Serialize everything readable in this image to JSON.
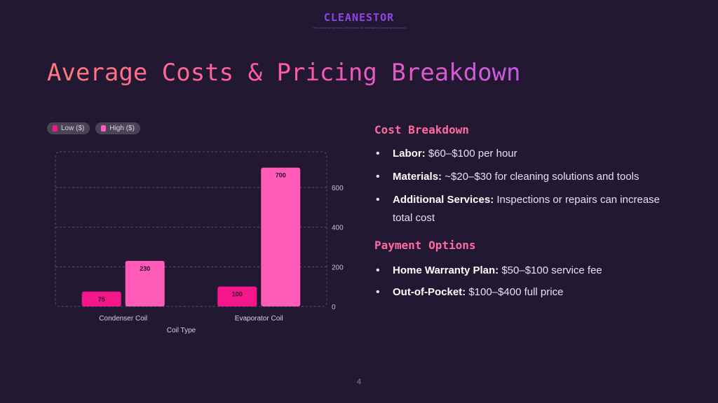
{
  "logo": {
    "wordmark": "CLEANESTOR",
    "tagline": "The Cleaning Service CoilNet and Air Ventilation Cleaning Solutions"
  },
  "title": "Average Costs & Pricing Breakdown",
  "colors": {
    "low": "#f5168c",
    "high": "#ff5cb9",
    "background": "#231831",
    "accent": "#ff6aa1"
  },
  "chart_data": {
    "type": "bar",
    "categories": [
      "Condenser Coil",
      "Evaporator Coil"
    ],
    "series": [
      {
        "name": "Low ($)",
        "values": [
          75,
          100
        ]
      },
      {
        "name": "High ($)",
        "values": [
          230,
          700
        ]
      }
    ],
    "xlabel": "Coil Type",
    "ylabel": "",
    "yticks": [
      0,
      200,
      400,
      600
    ],
    "ylim": [
      0,
      780
    ],
    "y_axis_side": "right",
    "grid": true,
    "legend_position": "top-left"
  },
  "sections": [
    {
      "heading": "Cost Breakdown",
      "bullets": [
        {
          "label": "Labor:",
          "text": "$60–$100 per hour"
        },
        {
          "label": "Materials:",
          "text": "~$20–$30 for cleaning solutions and tools"
        },
        {
          "label": "Additional Services:",
          "text": "Inspections or repairs can increase total cost"
        }
      ]
    },
    {
      "heading": "Payment Options",
      "bullets": [
        {
          "label": "Home Warranty Plan:",
          "text": "$50–$100 service fee"
        },
        {
          "label": "Out-of-Pocket:",
          "text": "$100–$400 full price"
        }
      ]
    }
  ],
  "page_number": "4"
}
